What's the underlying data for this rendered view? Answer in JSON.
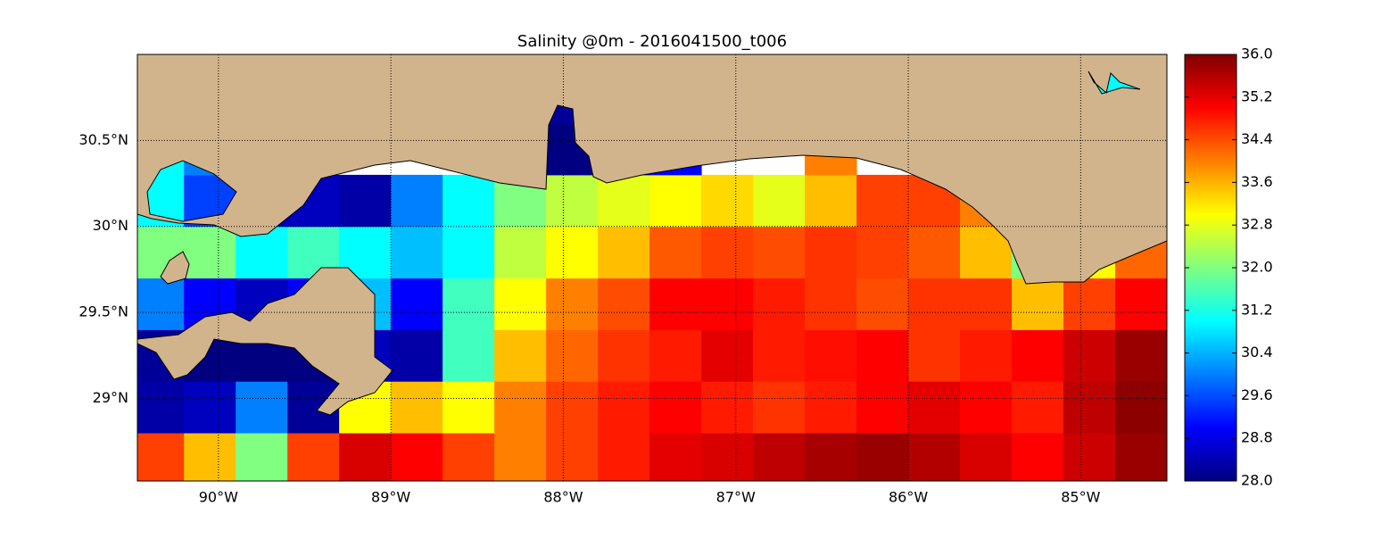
{
  "chart_data": {
    "type": "heatmap",
    "title": "Salinity @0m - 2016041500_t006",
    "colormap": "jet",
    "grid": true,
    "x": [
      -90.5,
      -90.2,
      -89.9,
      -89.6,
      -89.3,
      -89.0,
      -88.7,
      -88.4,
      -88.1,
      -87.8,
      -87.5,
      -87.2,
      -86.9,
      -86.6,
      -86.3,
      -86.0,
      -85.7,
      -85.4,
      -85.1,
      -84.8,
      -84.5
    ],
    "y": [
      28.5,
      28.8,
      29.1,
      29.4,
      29.7,
      30.0,
      30.3,
      30.6,
      30.9,
      31.2
    ],
    "values": [
      [
        34.5,
        33.5,
        32,
        34.5,
        35.3,
        35,
        34.5,
        34,
        34.5,
        34.8,
        35.2,
        35.3,
        35.5,
        35.7,
        35.8,
        35.6,
        35.3,
        35,
        35.4,
        35.8
      ],
      [
        28.3,
        28.5,
        30,
        28.2,
        33,
        33.5,
        33,
        34,
        34.5,
        34.8,
        35,
        34.8,
        34.6,
        34.8,
        35,
        35.2,
        35,
        34.8,
        35.5,
        35.9
      ],
      [
        28.2,
        28,
        28,
        28,
        28.5,
        28.3,
        31.5,
        33.5,
        34.2,
        34.6,
        34.8,
        35.2,
        34.8,
        34.9,
        35,
        34.6,
        34.8,
        35,
        35.4,
        35.8
      ],
      [
        30,
        29,
        28.5,
        29,
        30.5,
        29,
        31.5,
        33,
        34,
        34.4,
        35,
        35,
        34.8,
        34.6,
        34.4,
        34.6,
        34.6,
        33.5,
        34.5,
        35
      ],
      [
        32,
        32,
        31,
        31.5,
        31,
        30.5,
        31,
        32.5,
        33,
        33.5,
        34.3,
        34.5,
        34.4,
        34.6,
        34.5,
        34.3,
        33.5,
        32,
        33,
        34.2
      ],
      [
        31,
        29.5,
        28.5,
        28.5,
        28.3,
        30,
        31,
        32,
        32.5,
        32.8,
        33,
        33.3,
        32.8,
        33.5,
        34.5,
        34.5,
        34,
        33,
        33,
        33
      ],
      [
        31,
        30,
        null,
        null,
        null,
        null,
        null,
        null,
        28,
        28.5,
        29,
        null,
        null,
        34,
        null,
        null,
        null,
        null,
        null,
        null
      ],
      [
        null,
        null,
        null,
        null,
        null,
        null,
        null,
        null,
        28.2,
        null,
        null,
        null,
        null,
        null,
        null,
        null,
        null,
        null,
        null,
        null
      ],
      [
        null,
        null,
        null,
        null,
        null,
        null,
        null,
        null,
        null,
        null,
        null,
        null,
        null,
        null,
        null,
        null,
        null,
        null,
        null,
        null
      ]
    ],
    "xlim": [
      -90.47,
      -84.5
    ],
    "ylim": [
      28.52,
      31.0
    ],
    "xticks": [
      {
        "value": -90,
        "label": "90°W"
      },
      {
        "value": -89,
        "label": "89°W"
      },
      {
        "value": -88,
        "label": "88°W"
      },
      {
        "value": -87,
        "label": "87°W"
      },
      {
        "value": -86,
        "label": "86°W"
      },
      {
        "value": -85,
        "label": "85°W"
      }
    ],
    "yticks": [
      {
        "value": 29,
        "label": "29°N"
      },
      {
        "value": 29.5,
        "label": "29.5°N"
      },
      {
        "value": 30,
        "label": "30°N"
      },
      {
        "value": 30.5,
        "label": "30.5°N"
      }
    ],
    "clim": [
      28,
      36
    ],
    "cticks": [
      {
        "value": 28,
        "label": "28.0"
      },
      28.8,
      29.6,
      30.4,
      31.2,
      {
        "value": 32,
        "label": "32.0"
      },
      32.8,
      33.6,
      34.4,
      35.2,
      {
        "value": 36,
        "label": "36.0"
      }
    ]
  }
}
